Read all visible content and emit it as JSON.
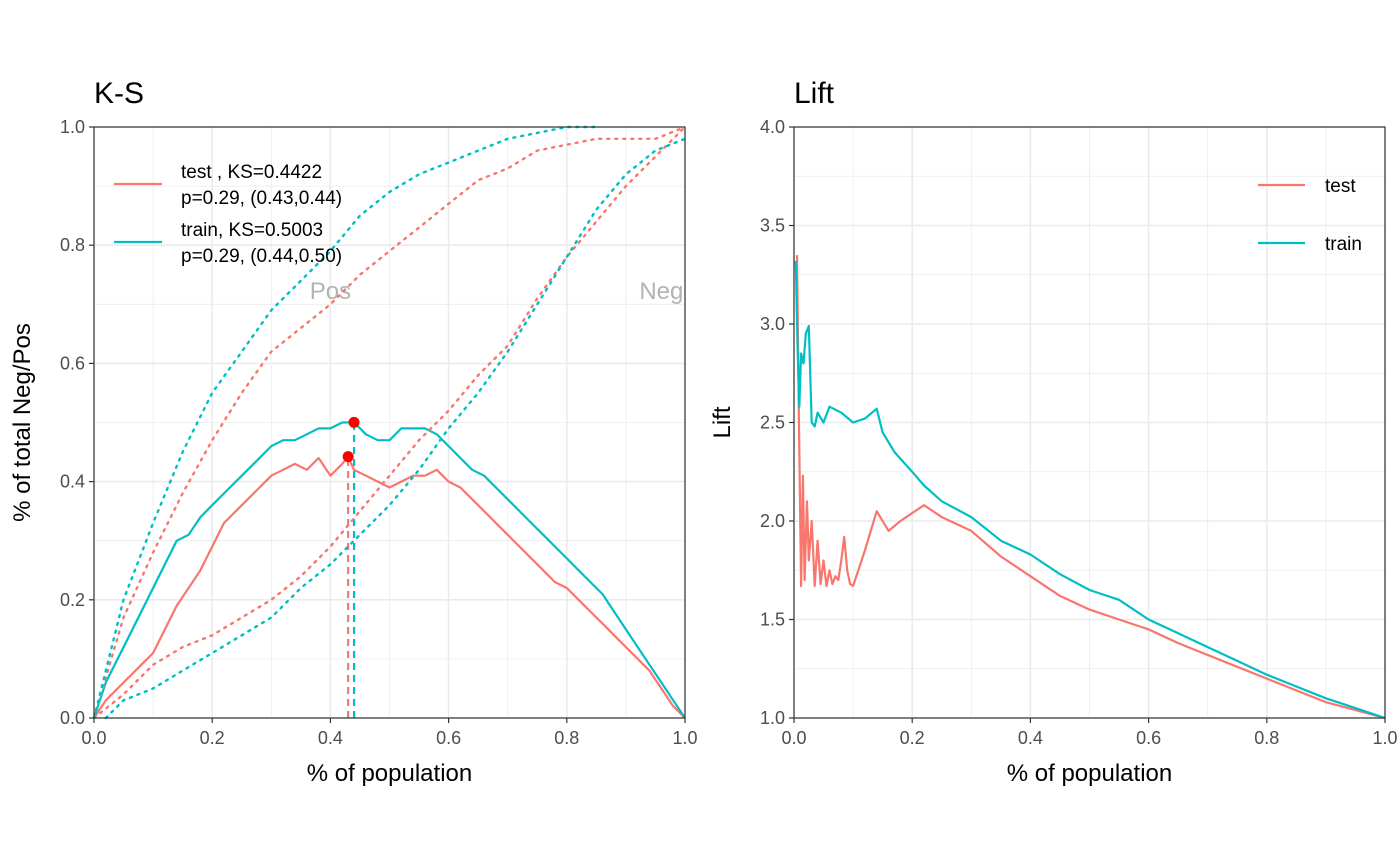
{
  "colors": {
    "test": "#F8766D",
    "train": "#00BFC4",
    "ks_point": "#FF0000",
    "grid": "#EBEBEB",
    "annotation": "#B3B3B3"
  },
  "chart_data": [
    {
      "type": "line",
      "title": "K-S",
      "xlabel": "% of population",
      "ylabel": "% of total Neg/Pos",
      "xlim": [
        0,
        1
      ],
      "ylim": [
        0,
        1
      ],
      "x_ticks": [
        0,
        0.2,
        0.4,
        0.6,
        0.8,
        1
      ],
      "x_tick_labels": [
        "0.0",
        "0.2",
        "0.4",
        "0.6",
        "0.8",
        "1.0"
      ],
      "y_ticks": [
        0,
        0.2,
        0.4,
        0.6,
        0.8,
        1
      ],
      "y_tick_labels": [
        "0.0",
        "0.2",
        "0.4",
        "0.6",
        "0.8",
        "1.0"
      ],
      "grid": true,
      "legend_position": "top-left",
      "legend": [
        {
          "series": "test",
          "line1": "test , KS=0.4422",
          "line2": "p=0.29, (0.43,0.44)"
        },
        {
          "series": "train",
          "line1": "train, KS=0.5003",
          "line2": "p=0.29, (0.44,0.50)"
        }
      ],
      "annotations": [
        {
          "text": "Pos",
          "x": 0.4,
          "y": 0.72
        },
        {
          "text": "Neg",
          "x": 0.96,
          "y": 0.72
        }
      ],
      "series": [
        {
          "id": "test_ks",
          "key": "test",
          "style": "solid",
          "x": [
            0,
            0.02,
            0.04,
            0.06,
            0.08,
            0.1,
            0.12,
            0.14,
            0.16,
            0.18,
            0.2,
            0.22,
            0.24,
            0.26,
            0.28,
            0.3,
            0.32,
            0.34,
            0.36,
            0.38,
            0.4,
            0.42,
            0.43,
            0.44,
            0.46,
            0.48,
            0.5,
            0.52,
            0.54,
            0.56,
            0.58,
            0.6,
            0.62,
            0.64,
            0.66,
            0.68,
            0.7,
            0.72,
            0.74,
            0.76,
            0.78,
            0.8,
            0.82,
            0.84,
            0.86,
            0.88,
            0.9,
            0.92,
            0.94,
            0.96,
            0.98,
            1
          ],
          "y": [
            0,
            0.03,
            0.05,
            0.07,
            0.09,
            0.11,
            0.15,
            0.19,
            0.22,
            0.25,
            0.29,
            0.33,
            0.35,
            0.37,
            0.39,
            0.41,
            0.42,
            0.43,
            0.42,
            0.44,
            0.41,
            0.43,
            0.4422,
            0.42,
            0.41,
            0.4,
            0.39,
            0.4,
            0.41,
            0.41,
            0.42,
            0.4,
            0.39,
            0.37,
            0.35,
            0.33,
            0.31,
            0.29,
            0.27,
            0.25,
            0.23,
            0.22,
            0.2,
            0.18,
            0.16,
            0.14,
            0.12,
            0.1,
            0.08,
            0.05,
            0.02,
            0
          ]
        },
        {
          "id": "train_ks",
          "key": "train",
          "style": "solid",
          "x": [
            0,
            0.02,
            0.04,
            0.06,
            0.08,
            0.1,
            0.12,
            0.14,
            0.16,
            0.18,
            0.2,
            0.22,
            0.24,
            0.26,
            0.28,
            0.3,
            0.32,
            0.34,
            0.36,
            0.38,
            0.4,
            0.42,
            0.44,
            0.46,
            0.48,
            0.5,
            0.52,
            0.54,
            0.56,
            0.58,
            0.6,
            0.62,
            0.64,
            0.66,
            0.68,
            0.7,
            0.72,
            0.74,
            0.76,
            0.78,
            0.8,
            0.82,
            0.84,
            0.86,
            0.88,
            0.9,
            0.92,
            0.94,
            0.96,
            0.98,
            1
          ],
          "y": [
            0,
            0.06,
            0.1,
            0.14,
            0.18,
            0.22,
            0.26,
            0.3,
            0.31,
            0.34,
            0.36,
            0.38,
            0.4,
            0.42,
            0.44,
            0.46,
            0.47,
            0.47,
            0.48,
            0.49,
            0.49,
            0.5,
            0.5003,
            0.48,
            0.47,
            0.47,
            0.49,
            0.49,
            0.49,
            0.48,
            0.46,
            0.44,
            0.42,
            0.41,
            0.39,
            0.37,
            0.35,
            0.33,
            0.31,
            0.29,
            0.27,
            0.25,
            0.23,
            0.21,
            0.18,
            0.15,
            0.12,
            0.09,
            0.06,
            0.03,
            0
          ]
        },
        {
          "id": "test_pos",
          "key": "test",
          "style": "dotted",
          "x": [
            0,
            0.05,
            0.1,
            0.15,
            0.2,
            0.25,
            0.3,
            0.35,
            0.4,
            0.45,
            0.5,
            0.55,
            0.6,
            0.65,
            0.7,
            0.75,
            0.8,
            0.85,
            0.9,
            0.95,
            1
          ],
          "y": [
            0,
            0.17,
            0.28,
            0.38,
            0.47,
            0.55,
            0.62,
            0.66,
            0.7,
            0.75,
            0.79,
            0.83,
            0.87,
            0.91,
            0.93,
            0.96,
            0.97,
            0.98,
            0.98,
            0.98,
            1
          ]
        },
        {
          "id": "test_neg",
          "key": "test",
          "style": "dotted",
          "x": [
            0,
            0.05,
            0.1,
            0.15,
            0.2,
            0.25,
            0.3,
            0.35,
            0.4,
            0.45,
            0.5,
            0.55,
            0.6,
            0.65,
            0.7,
            0.75,
            0.8,
            0.85,
            0.9,
            0.95,
            1
          ],
          "y": [
            0,
            0.04,
            0.09,
            0.12,
            0.14,
            0.17,
            0.2,
            0.24,
            0.29,
            0.35,
            0.41,
            0.47,
            0.52,
            0.58,
            0.63,
            0.71,
            0.78,
            0.84,
            0.9,
            0.95,
            1
          ]
        },
        {
          "id": "train_pos",
          "key": "train",
          "style": "dotted",
          "x": [
            0,
            0.05,
            0.1,
            0.15,
            0.2,
            0.25,
            0.3,
            0.35,
            0.4,
            0.45,
            0.5,
            0.55,
            0.6,
            0.65,
            0.7,
            0.75,
            0.8,
            0.85
          ],
          "y": [
            0,
            0.2,
            0.33,
            0.45,
            0.55,
            0.62,
            0.69,
            0.74,
            0.79,
            0.85,
            0.89,
            0.92,
            0.94,
            0.96,
            0.98,
            0.99,
            1,
            1
          ]
        },
        {
          "id": "train_neg",
          "key": "train",
          "style": "dotted",
          "x": [
            0.02,
            0.05,
            0.1,
            0.15,
            0.2,
            0.25,
            0.3,
            0.35,
            0.4,
            0.45,
            0.5,
            0.55,
            0.6,
            0.65,
            0.7,
            0.75,
            0.8,
            0.85,
            0.9,
            0.95,
            1
          ],
          "y": [
            0,
            0.03,
            0.05,
            0.08,
            0.11,
            0.14,
            0.17,
            0.22,
            0.26,
            0.31,
            0.36,
            0.42,
            0.49,
            0.55,
            0.62,
            0.7,
            0.78,
            0.86,
            0.92,
            0.96,
            0.98
          ]
        }
      ],
      "ks_points": [
        {
          "key": "test",
          "x": 0.43,
          "y": 0.4422
        },
        {
          "key": "train",
          "x": 0.44,
          "y": 0.5003
        }
      ]
    },
    {
      "type": "line",
      "title": "Lift",
      "xlabel": "% of population",
      "ylabel": "Lift",
      "xlim": [
        0,
        1
      ],
      "ylim": [
        1,
        4
      ],
      "x_ticks": [
        0,
        0.2,
        0.4,
        0.6,
        0.8,
        1
      ],
      "x_tick_labels": [
        "0.0",
        "0.2",
        "0.4",
        "0.6",
        "0.8",
        "1.0"
      ],
      "y_ticks": [
        1,
        1.5,
        2,
        2.5,
        3,
        3.5,
        4
      ],
      "y_tick_labels": [
        "1.0",
        "1.5",
        "2.0",
        "2.5",
        "3.0",
        "3.5",
        "4.0"
      ],
      "grid": true,
      "legend_position": "top-right",
      "legend": [
        {
          "series": "test",
          "label": "test"
        },
        {
          "series": "train",
          "label": "train"
        }
      ],
      "series": [
        {
          "id": "test_lift",
          "key": "test",
          "style": "solid",
          "x": [
            0.005,
            0.008,
            0.012,
            0.015,
            0.018,
            0.022,
            0.025,
            0.03,
            0.035,
            0.04,
            0.045,
            0.05,
            0.055,
            0.06,
            0.065,
            0.07,
            0.075,
            0.08,
            0.085,
            0.09,
            0.095,
            0.1,
            0.12,
            0.14,
            0.16,
            0.18,
            0.2,
            0.22,
            0.25,
            0.3,
            0.35,
            0.4,
            0.45,
            0.5,
            0.55,
            0.6,
            0.65,
            0.7,
            0.75,
            0.8,
            0.85,
            0.9,
            0.95,
            1
          ],
          "y": [
            3.35,
            2.6,
            1.67,
            2.23,
            1.7,
            2.1,
            1.8,
            2.0,
            1.67,
            1.9,
            1.68,
            1.8,
            1.67,
            1.75,
            1.68,
            1.72,
            1.7,
            1.8,
            1.92,
            1.75,
            1.68,
            1.67,
            1.85,
            2.05,
            1.95,
            2.0,
            2.04,
            2.08,
            2.02,
            1.95,
            1.82,
            1.72,
            1.62,
            1.55,
            1.5,
            1.45,
            1.38,
            1.32,
            1.26,
            1.2,
            1.14,
            1.08,
            1.04,
            1.0
          ]
        },
        {
          "id": "train_lift",
          "key": "train",
          "style": "solid",
          "x": [
            0.003,
            0.006,
            0.009,
            0.012,
            0.016,
            0.02,
            0.025,
            0.03,
            0.035,
            0.04,
            0.05,
            0.06,
            0.08,
            0.1,
            0.12,
            0.14,
            0.15,
            0.17,
            0.2,
            0.22,
            0.25,
            0.3,
            0.35,
            0.4,
            0.45,
            0.5,
            0.55,
            0.6,
            0.65,
            0.7,
            0.75,
            0.8,
            0.85,
            0.9,
            0.95,
            1
          ],
          "y": [
            3.32,
            2.9,
            2.58,
            2.85,
            2.8,
            2.95,
            2.99,
            2.5,
            2.48,
            2.55,
            2.5,
            2.58,
            2.55,
            2.5,
            2.52,
            2.57,
            2.45,
            2.35,
            2.25,
            2.18,
            2.1,
            2.02,
            1.9,
            1.83,
            1.73,
            1.65,
            1.6,
            1.5,
            1.43,
            1.36,
            1.29,
            1.22,
            1.16,
            1.1,
            1.05,
            1.0
          ]
        }
      ]
    }
  ]
}
